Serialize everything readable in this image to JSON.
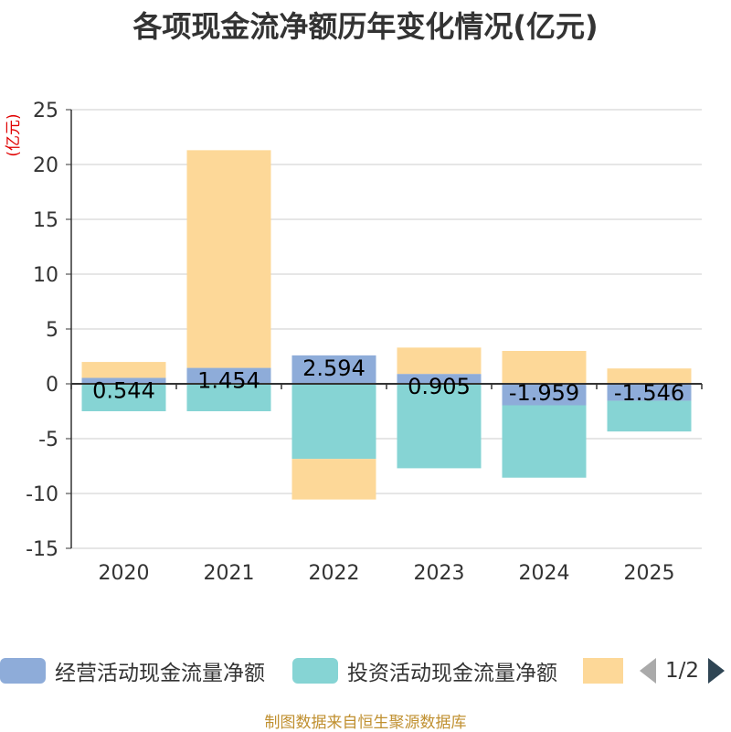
{
  "chart_data": {
    "type": "bar",
    "stacked": true,
    "title": "各项现金流净额历年变化情况(亿元)",
    "ylabel": "(亿元)",
    "ylim": [
      -15,
      25
    ],
    "yticks": [
      25,
      20,
      15,
      10,
      5,
      0,
      -5,
      -10,
      -15
    ],
    "categories": [
      "2020",
      "2021",
      "2022",
      "2023",
      "2024",
      "2025"
    ],
    "series": [
      {
        "name": "经营活动现金流量净额",
        "color": "#8eacd9",
        "values": [
          0.544,
          1.454,
          2.594,
          0.905,
          -1.959,
          -1.546
        ]
      },
      {
        "name": "投资活动现金流量净额",
        "color": "#86d4d4",
        "values": [
          -2.5,
          -2.5,
          -6.85,
          -7.7,
          -6.6,
          -2.8
        ]
      },
      {
        "name": "",
        "color": "#fdd898",
        "values": [
          1.45,
          19.85,
          -3.7,
          2.4,
          3.0,
          1.4
        ]
      }
    ],
    "data_labels": [
      "0.544",
      "1.454",
      "2.594",
      "0.905",
      "-1.959",
      "-1.546"
    ],
    "legend_position": "bottom"
  },
  "legend": {
    "page": "1/2"
  },
  "source": "制图数据来自恒生聚源数据库"
}
